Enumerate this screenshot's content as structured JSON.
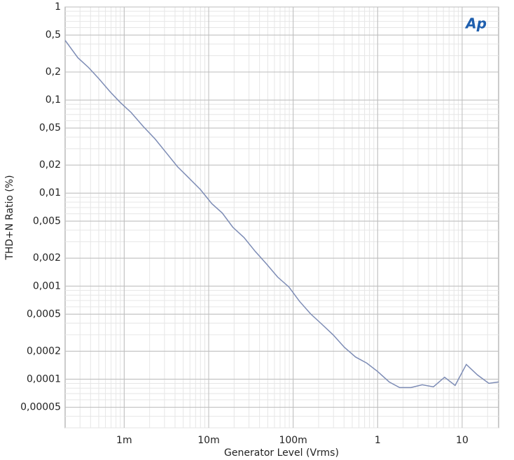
{
  "chart_data": {
    "type": "line",
    "logo": "Ap",
    "x_label": "Generator Level (Vrms)",
    "y_label": "THD+N Ratio (%)",
    "x": [
      0.0002,
      0.000283,
      0.000378,
      0.0005,
      0.00068,
      0.00089,
      0.00121,
      0.00168,
      0.00232,
      0.00315,
      0.00428,
      0.0058,
      0.008,
      0.0109,
      0.0145,
      0.0193,
      0.0262,
      0.0356,
      0.0484,
      0.0656,
      0.089,
      0.119,
      0.161,
      0.219,
      0.297,
      0.404,
      0.548,
      0.743,
      1.0,
      1.37,
      1.82,
      2.48,
      3.37,
      4.57,
      6.2,
      8.26,
      11.2,
      15.2,
      20.7,
      27
    ],
    "series": [
      {
        "color": "#7d8cb5",
        "values": [
          0.438,
          0.285,
          0.224,
          0.17,
          0.123,
          0.095,
          0.0734,
          0.052,
          0.0382,
          0.0271,
          0.0192,
          0.0146,
          0.0109,
          0.0077,
          0.0061,
          0.0043,
          0.00333,
          0.00236,
          0.00173,
          0.00125,
          0.00098,
          0.000686,
          0.000503,
          0.000389,
          0.0003,
          0.00022,
          0.000173,
          0.000149,
          0.000121,
          9.34e-05,
          8.13e-05,
          8.13e-05,
          8.71e-05,
          8.28e-05,
          0.000105,
          8.57e-05,
          0.000144,
          0.000111,
          9.02e-05,
          9.34e-05
        ]
      }
    ],
    "xlim": [
      0.0002,
      27
    ],
    "ylim": [
      3e-05,
      1
    ],
    "log_x": true,
    "log_y": true,
    "grid": true,
    "minor_grid": true,
    "xticks": [
      {
        "value": 0.001,
        "label": "1m"
      },
      {
        "value": 0.01,
        "label": "10m"
      },
      {
        "value": 0.1,
        "label": "100m"
      },
      1,
      10
    ],
    "yticks": [
      1,
      {
        "value": 0.5,
        "label": "0,5"
      },
      {
        "value": 0.2,
        "label": "0,2"
      },
      {
        "value": 0.1,
        "label": "0,1"
      },
      {
        "value": 0.05,
        "label": "0,05"
      },
      {
        "value": 0.02,
        "label": "0,02"
      },
      {
        "value": 0.01,
        "label": "0,01"
      },
      {
        "value": 0.005,
        "label": "0,005"
      },
      {
        "value": 0.002,
        "label": "0,002"
      },
      {
        "value": 0.001,
        "label": "0,001"
      },
      {
        "value": 0.0005,
        "label": "0,0005"
      },
      {
        "value": 0.0002,
        "label": "0,0002"
      },
      {
        "value": 0.0001,
        "label": "0,0001"
      },
      {
        "value": 5e-05,
        "label": "0,00005"
      }
    ]
  }
}
